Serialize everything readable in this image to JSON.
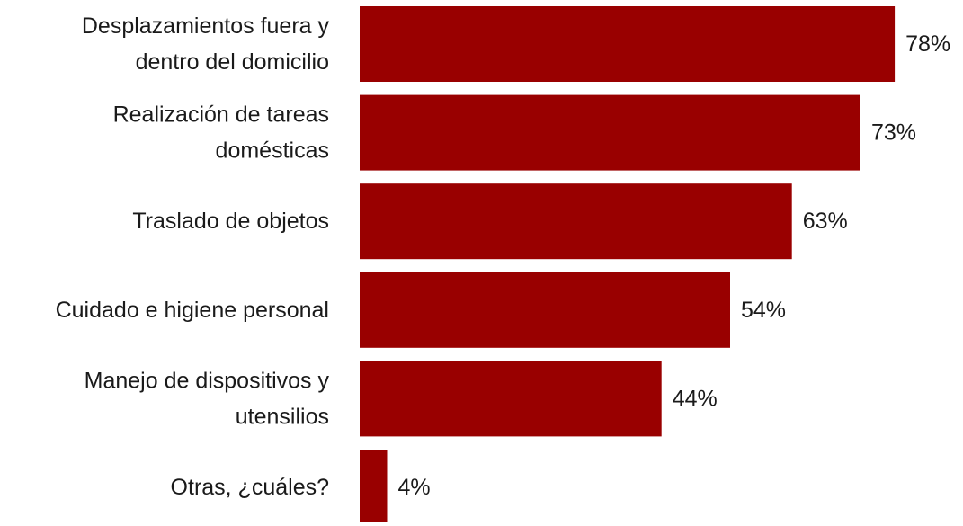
{
  "chart_data": {
    "type": "bar",
    "orientation": "horizontal",
    "categories": [
      [
        "Desplazamientos fuera y",
        "dentro del domicilio"
      ],
      [
        "Realización de tareas",
        "domésticas"
      ],
      [
        "Traslado de objetos"
      ],
      [
        "Cuidado e higiene personal"
      ],
      [
        "Manejo de dispositivos y",
        "utensilios"
      ],
      [
        "Otras, ¿cuáles?"
      ]
    ],
    "values": [
      78,
      73,
      63,
      54,
      44,
      4
    ],
    "value_labels": [
      "78%",
      "73%",
      "63%",
      "54%",
      "44%",
      "4%"
    ],
    "bar_color": "#990000",
    "title": "",
    "xlabel": "",
    "ylabel": "",
    "xlim": [
      0,
      100
    ],
    "grid": false,
    "legend": "none"
  }
}
